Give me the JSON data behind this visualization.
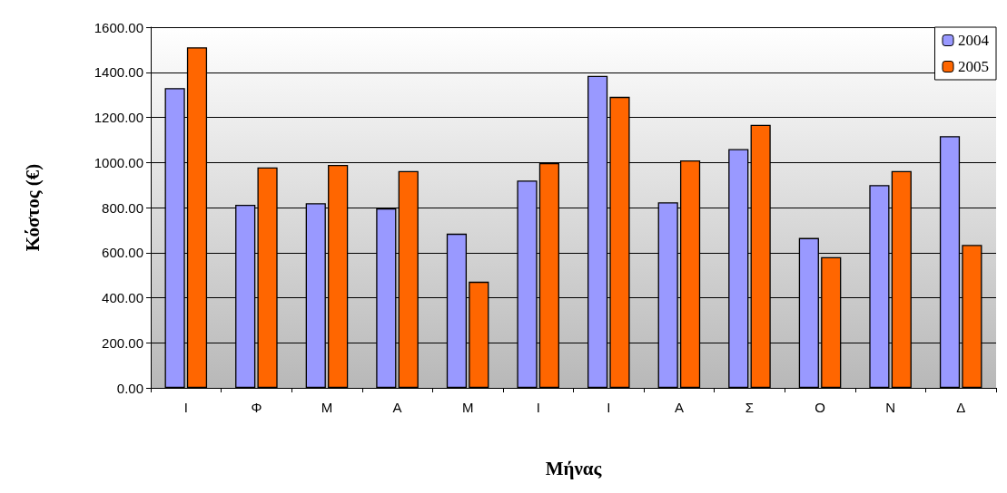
{
  "chart_data": {
    "type": "bar",
    "xlabel": "Μήνας",
    "ylabel": "Κόστος (€)",
    "categories": [
      "Ι",
      "Φ",
      "Μ",
      "Α",
      "Μ",
      "Ι",
      "Ι",
      "Α",
      "Σ",
      "Ο",
      "Ν",
      "Δ"
    ],
    "series": [
      {
        "name": "2004",
        "color": "#9999ff",
        "values": [
          1330,
          812,
          819,
          796,
          684,
          920,
          1384,
          823,
          1059,
          665,
          900,
          1117
        ]
      },
      {
        "name": "2005",
        "color": "#ff6600",
        "values": [
          1511,
          978,
          989,
          962,
          471,
          997,
          1291,
          1009,
          1167,
          580,
          962,
          634
        ]
      }
    ],
    "ylim": [
      0,
      1600
    ],
    "yticks": [
      {
        "value": 0,
        "label": "0.00"
      },
      {
        "value": 200,
        "label": "200.00"
      },
      {
        "value": 400,
        "label": "400.00"
      },
      {
        "value": 600,
        "label": "600.00"
      },
      {
        "value": 800,
        "label": "800.00"
      },
      {
        "value": 1000,
        "label": "1000.00"
      },
      {
        "value": 1200,
        "label": "1200.00"
      },
      {
        "value": 1400,
        "label": "1400.00"
      },
      {
        "value": 1600,
        "label": "1600.00"
      }
    ],
    "grid": "y",
    "legend": "top right"
  }
}
